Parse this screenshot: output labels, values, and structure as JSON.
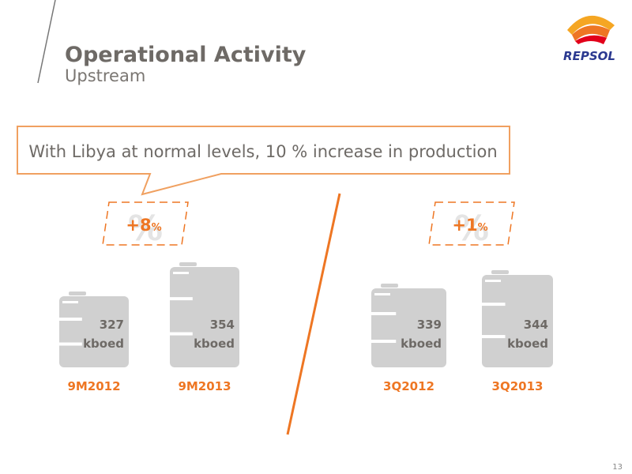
{
  "header": {
    "title": "Operational Activity",
    "subtitle": "Upstream",
    "logo": "REPSOL"
  },
  "callout": "With Libya at normal levels, 10 % increase in production",
  "comparisons": [
    {
      "change": "+8",
      "unit": "%",
      "barrels": [
        {
          "value": "327",
          "unit": "kboed",
          "label": "9M2012"
        },
        {
          "value": "354",
          "unit": "kboed",
          "label": "9M2013"
        }
      ]
    },
    {
      "change": "+1",
      "unit": "%",
      "barrels": [
        {
          "value": "339",
          "unit": "kboed",
          "label": "3Q2012"
        },
        {
          "value": "344",
          "unit": "kboed",
          "label": "3Q2013"
        }
      ]
    }
  ],
  "page_number": "13"
}
